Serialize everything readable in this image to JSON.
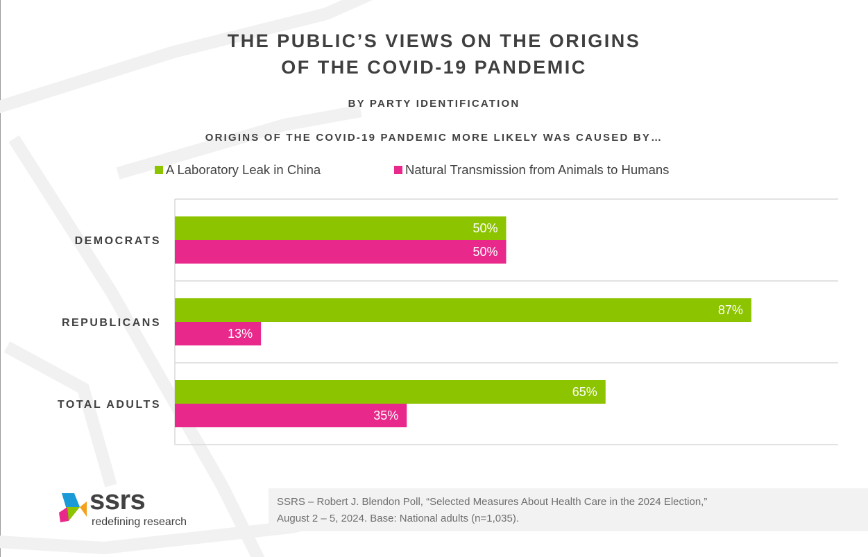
{
  "title_lines": [
    "THE PUBLIC’S VIEWS ON THE ORIGINS",
    "OF THE COVID-19 PANDEMIC"
  ],
  "subtitle": "BY PARTY IDENTIFICATION",
  "question": "ORIGINS OF THE COVID-19 PANDEMIC MORE LIKELY WAS CAUSED BY…",
  "legend": [
    {
      "label": "A Laboratory Leak in China",
      "color": "#8dc400"
    },
    {
      "label": "Natural Transmission from Animals to Humans",
      "color": "#e8288a"
    }
  ],
  "chart_data": {
    "type": "bar",
    "orientation": "horizontal",
    "categories": [
      "DEMOCRATS",
      "REPUBLICANS",
      "TOTAL ADULTS"
    ],
    "series": [
      {
        "name": "A Laboratory Leak in China",
        "values": [
          50,
          87,
          65
        ],
        "labels": [
          "50%",
          "87%",
          "65%"
        ],
        "color": "#8dc400"
      },
      {
        "name": "Natural Transmission from Animals to Humans",
        "values": [
          50,
          13,
          35
        ],
        "labels": [
          "50%",
          "13%",
          "35%"
        ],
        "color": "#e8288a"
      }
    ],
    "xlim": [
      0,
      100
    ],
    "grid": "horizontal separators between categories",
    "legend_position": "top"
  },
  "logo": {
    "word": "ssrs",
    "tagline": "redefining research"
  },
  "source_lines": [
    "SSRS – Robert J. Blendon Poll, “Selected Measures About Health Care in the 2024 Election,”",
    "August 2 – 5, 2024. Base: National adults (n=1,035)."
  ]
}
